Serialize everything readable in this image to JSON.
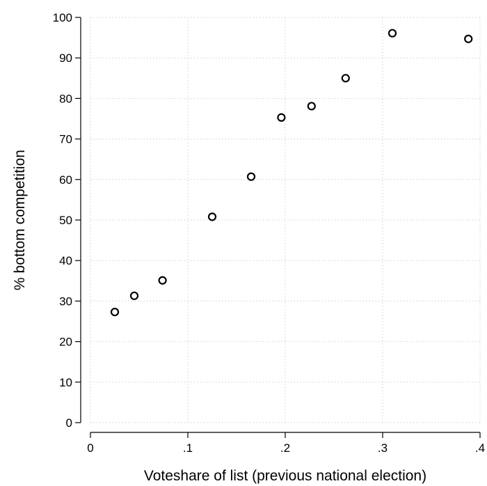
{
  "chart_data": {
    "type": "scatter",
    "title": "",
    "xlabel": "Voteshare of list (previous national election)",
    "ylabel": "% bottom competition",
    "xlim": [
      0,
      0.4
    ],
    "ylim": [
      0,
      100
    ],
    "grid": true,
    "x_ticks": [
      0,
      0.1,
      0.2,
      0.3,
      0.4
    ],
    "x_tick_labels": [
      "0",
      ".1",
      ".2",
      ".3",
      ".4"
    ],
    "y_ticks": [
      0,
      10,
      20,
      30,
      40,
      50,
      60,
      70,
      80,
      90,
      100
    ],
    "y_tick_labels": [
      "0",
      "10",
      "20",
      "30",
      "40",
      "50",
      "60",
      "70",
      "80",
      "90",
      "100"
    ],
    "points": [
      {
        "x": 0.025,
        "y": 27.3
      },
      {
        "x": 0.045,
        "y": 31.3
      },
      {
        "x": 0.074,
        "y": 35.1
      },
      {
        "x": 0.125,
        "y": 50.8
      },
      {
        "x": 0.165,
        "y": 60.7
      },
      {
        "x": 0.196,
        "y": 75.3
      },
      {
        "x": 0.227,
        "y": 78.1
      },
      {
        "x": 0.262,
        "y": 85.0
      },
      {
        "x": 0.31,
        "y": 96.1
      },
      {
        "x": 0.388,
        "y": 94.7
      }
    ]
  }
}
